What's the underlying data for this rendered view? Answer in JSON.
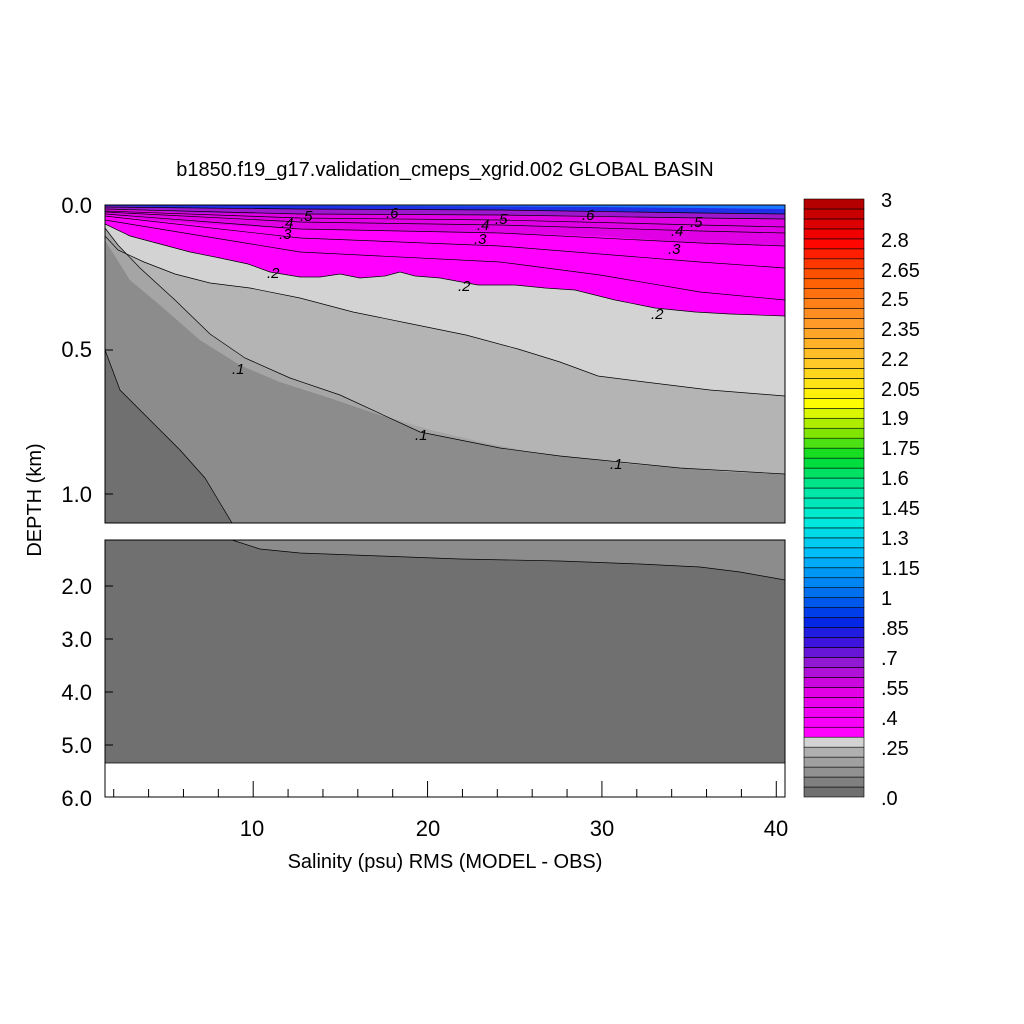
{
  "chart_data": {
    "type": "contour",
    "title": "b1850.f19_g17.validation_cmeps_xgrid.002 GLOBAL BASIN",
    "xlabel": "Salinity (psu) RMS (MODEL - OBS)",
    "ylabel": "DEPTH (km)",
    "x_ticks": [
      "10",
      "20",
      "30",
      "40"
    ],
    "y_ticks_upper": [
      "0.0",
      "0.5",
      "1.0"
    ],
    "y_ticks_lower": [
      "2.0",
      "3.0",
      "4.0",
      "5.0",
      "6.0"
    ],
    "colorbar_labels": [
      "3",
      "2.8",
      "2.65",
      "2.5",
      "2.35",
      "2.2",
      "2.05",
      "1.9",
      "1.75",
      "1.6",
      "1.45",
      "1.3",
      "1.15",
      "1",
      ".85",
      ".7",
      ".55",
      ".4",
      ".25",
      ".0"
    ],
    "contour_labels": [
      ".5",
      ".6",
      ".4",
      ".3",
      ".4",
      ".5",
      ".3",
      ".6",
      ".4",
      ".5",
      ".3",
      ".2",
      ".2",
      ".2",
      ".1",
      ".1",
      ".1"
    ],
    "contour_levels": [
      0.0,
      0.05,
      0.1,
      0.15,
      0.2,
      0.25,
      0.3,
      0.35,
      0.4,
      0.45,
      0.5,
      0.55,
      0.6,
      0.65,
      0.7
    ],
    "xlim": [
      1.5,
      40.5
    ],
    "ylim_upper_km": [
      0.0,
      1.1
    ],
    "ylim_lower_km": [
      1.1,
      6.0
    ]
  }
}
